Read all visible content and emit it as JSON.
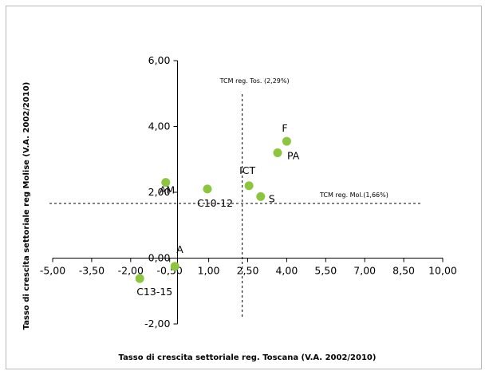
{
  "chart_data": {
    "type": "scatter",
    "xlabel": "Tasso di crescita settoriale reg. Toscana (V.A. 2002/2010)",
    "ylabel": "Tasso di crescita settoriale reg Molise  (V.A. 2002/2010)",
    "xlim": [
      -5.0,
      10.0
    ],
    "ylim": [
      -2.0,
      6.0
    ],
    "x_ticks": [
      "-5,00",
      "-3,50",
      "-2,00",
      "-0,50",
      "1,00",
      "2,50",
      "4,00",
      "5,50",
      "7,00",
      "8,50",
      "10,00"
    ],
    "y_ticks": [
      "6,00",
      "4,00",
      "2,00",
      "0,00",
      "-2,00"
    ],
    "grid": false,
    "marker_color": "#8cc63f",
    "points": [
      {
        "label": "F",
        "x": 4.0,
        "y": 3.55
      },
      {
        "label": "PA",
        "x": 3.65,
        "y": 3.2
      },
      {
        "label": "ICT",
        "x": 2.55,
        "y": 2.2
      },
      {
        "label": "S",
        "x": 3.0,
        "y": 1.87
      },
      {
        "label": "AM",
        "x": -0.65,
        "y": 2.3
      },
      {
        "label": "C10-12",
        "x": 0.95,
        "y": 2.1
      },
      {
        "label": "A",
        "x": -0.3,
        "y": -0.25
      },
      {
        "label": "C13-15",
        "x": -1.65,
        "y": -0.62
      }
    ],
    "reference_lines": [
      {
        "orientation": "vertical",
        "x": 2.29,
        "label": "TCM reg. Tos. (2,29%)"
      },
      {
        "orientation": "horizontal",
        "y": 1.66,
        "label": "TCM reg.  Mol.(1,66%)"
      }
    ]
  }
}
